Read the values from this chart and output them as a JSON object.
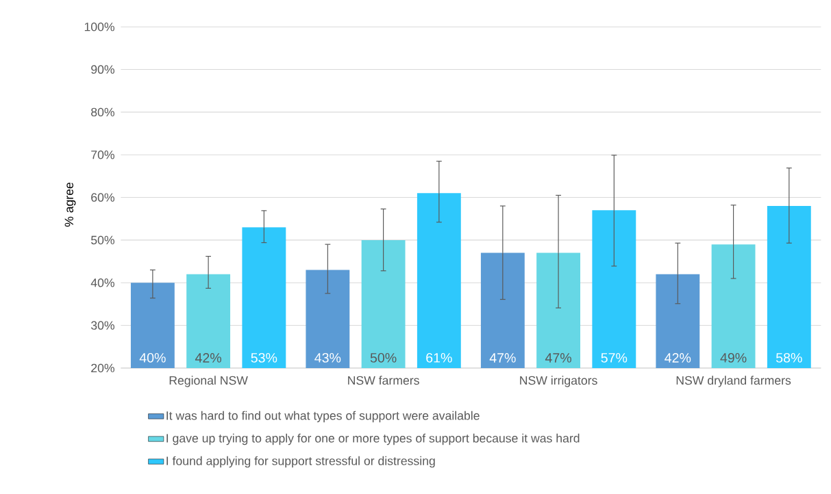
{
  "chart_data": {
    "type": "bar",
    "ylabel": "% agree",
    "categories": [
      "Regional NSW",
      "NSW farmers",
      "NSW irrigators",
      "NSW dryland farmers"
    ],
    "series": [
      {
        "name": "It was hard to find out what types of support were available",
        "color": "#5b9bd5",
        "values": [
          40,
          43,
          47,
          42
        ],
        "value_labels": [
          "40%",
          "43%",
          "47%",
          "42%"
        ],
        "errors": [
          [
            36.4,
            43.0
          ],
          [
            37.5,
            49.0
          ],
          [
            36.1,
            58.0
          ],
          [
            35.1,
            49.3
          ]
        ]
      },
      {
        "name": "I gave up trying to apply for one or more types of support because it was hard",
        "color": "#66d7e5",
        "values": [
          42,
          50,
          47,
          49
        ],
        "value_labels": [
          "42%",
          "50%",
          "47%",
          "49%"
        ],
        "errors": [
          [
            38.7,
            46.2
          ],
          [
            42.8,
            57.3
          ],
          [
            34.1,
            60.5
          ],
          [
            41.0,
            58.2
          ]
        ]
      },
      {
        "name": "I found applying for support stressful or distressing",
        "color": "#2ec8fc",
        "values": [
          53,
          61,
          57,
          58
        ],
        "value_labels": [
          "53%",
          "61%",
          "57%",
          "58%"
        ],
        "errors": [
          [
            49.4,
            56.9
          ],
          [
            54.2,
            68.5
          ],
          [
            43.9,
            69.9
          ],
          [
            49.3,
            66.9
          ]
        ]
      }
    ],
    "ylim": [
      20,
      100
    ],
    "yticks": [
      {
        "value": 20,
        "label": "20%"
      },
      {
        "value": 30,
        "label": "30%"
      },
      {
        "value": 40,
        "label": "40%"
      },
      {
        "value": 50,
        "label": "50%"
      },
      {
        "value": 60,
        "label": "60%"
      },
      {
        "value": 70,
        "label": "70%"
      },
      {
        "value": 80,
        "label": "80%"
      },
      {
        "value": 90,
        "label": "90%"
      },
      {
        "value": 100,
        "label": "100%"
      }
    ],
    "grid": "y",
    "legend": "bottom"
  }
}
